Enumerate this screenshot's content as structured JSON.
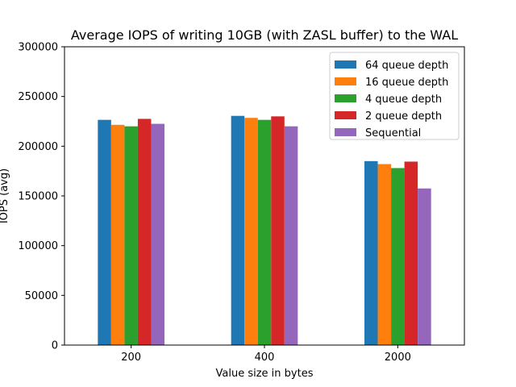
{
  "chart_data": {
    "type": "bar",
    "title": "Average IOPS of writing 10GB (with ZASL buffer) to the WAL",
    "xlabel": "Value size in bytes",
    "ylabel": "IOPS (avg)",
    "categories": [
      "200",
      "400",
      "2000"
    ],
    "ylim": [
      0,
      300000
    ],
    "yticks": [
      0,
      50000,
      100000,
      150000,
      200000,
      250000,
      300000
    ],
    "ytick_labels": [
      "0",
      "50000",
      "100000",
      "150000",
      "200000",
      "250000",
      "300000"
    ],
    "grid": false,
    "legend_position": "top-right",
    "series": [
      {
        "name": "64 queue depth",
        "color": "#1f77b4",
        "values": [
          226500,
          230500,
          185000
        ]
      },
      {
        "name": "16 queue depth",
        "color": "#ff7f0e",
        "values": [
          221500,
          228500,
          182000
        ]
      },
      {
        "name": "4 queue depth",
        "color": "#2ca02c",
        "values": [
          220000,
          226500,
          178000
        ]
      },
      {
        "name": "2 queue depth",
        "color": "#d62728",
        "values": [
          227500,
          230000,
          184500
        ]
      },
      {
        "name": "Sequential",
        "color": "#9467bd",
        "values": [
          222500,
          220000,
          157500
        ]
      }
    ]
  }
}
